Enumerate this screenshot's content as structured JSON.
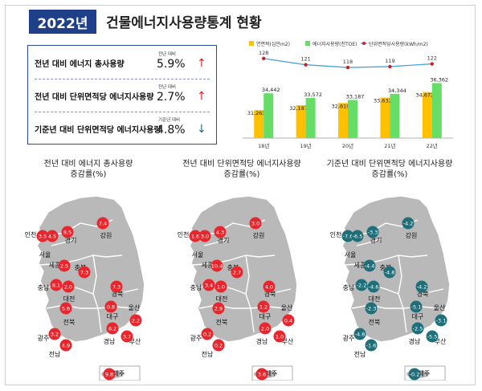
{
  "header": {
    "year": "2022년",
    "title": "건물에너지사용량통계 현황"
  },
  "stats": [
    {
      "label": "전년 대비 에너지 총사용량",
      "caption": "전년 대비",
      "value": "5.9%",
      "arrow": "↑",
      "direction": "up",
      "color": "#e02020"
    },
    {
      "label": "전년 대비 단위면적당 에너지사용량",
      "caption": "전년 대비",
      "value": "2.7%",
      "arrow": "↑",
      "direction": "up",
      "color": "#e02020"
    },
    {
      "label": "기준년 대비 단위면적당 에너지사용량",
      "caption": "기준년 대비",
      "value": "4.8%",
      "arrow": "↓",
      "direction": "down",
      "color": "#1e6f7a"
    }
  ],
  "chart_data": [
    {
      "type": "bar",
      "categories": [
        "18년",
        "19년",
        "20년",
        "21년",
        "22년"
      ],
      "series": [
        {
          "name": "연면적(십만m2)",
          "kind": "bar",
          "color": "#ffc000",
          "values": [
            31263,
            32187,
            32619,
            33632,
            34672
          ]
        },
        {
          "name": "에너지사용량(천TOE)",
          "kind": "bar",
          "color": "#66dd66",
          "values": [
            34442,
            33572,
            33187,
            34344,
            36362
          ]
        },
        {
          "name": "단위면적당사용량(kWh/m2)",
          "kind": "line",
          "color": "#4aa3df",
          "marker_color": "#cc2020",
          "values": [
            128,
            121,
            118,
            119,
            122
          ]
        }
      ],
      "legend_position": "top",
      "title": "",
      "xlabel": "",
      "ylabel": ""
    },
    {
      "type": "map",
      "title": "전년 대비 에너지 총사용량\n증감률(%)",
      "bubble_color": "#e8262d",
      "values": [
        {
          "region": "인천",
          "value": 3.5
        },
        {
          "region": "서울",
          "value": 4.5
        },
        {
          "region": "경기",
          "value": 8.5
        },
        {
          "region": "강원",
          "value": 7.4
        },
        {
          "region": "세종",
          "value": 2.5
        },
        {
          "region": "충북",
          "value": 7.3
        },
        {
          "region": "충남",
          "value": 8.1
        },
        {
          "region": "대전",
          "value": 2.0
        },
        {
          "region": "경북",
          "value": 7.3
        },
        {
          "region": "대구",
          "value": 0.8
        },
        {
          "region": "울산",
          "value": 2.2
        },
        {
          "region": "전북",
          "value": 5.6
        },
        {
          "region": "경남",
          "value": 6.2
        },
        {
          "region": "부산",
          "value": 3.7
        },
        {
          "region": "광주",
          "value": 3.2
        },
        {
          "region": "전남",
          "value": 4.9
        },
        {
          "region": "제주",
          "value": 9.8
        }
      ]
    },
    {
      "type": "map",
      "title": "전년 대비 단위면적당 에너지사용량\n증감률(%)",
      "bubble_color": "#e8262d",
      "values": [
        {
          "region": "인천",
          "value": 1.6
        },
        {
          "region": "서울",
          "value": 3.0
        },
        {
          "region": "경기",
          "value": 4.3
        },
        {
          "region": "강원",
          "value": 3.0
        },
        {
          "region": "세종",
          "value": 10.4
        },
        {
          "region": "충북",
          "value": 2.7
        },
        {
          "region": "충남",
          "value": 3.4
        },
        {
          "region": "대전",
          "value": 1.0
        },
        {
          "region": "경북",
          "value": 4.0
        },
        {
          "region": "대구",
          "value": 1.2
        },
        {
          "region": "울산",
          "value": 0.4
        },
        {
          "region": "전북",
          "value": 2.9
        },
        {
          "region": "경남",
          "value": 2.0
        },
        {
          "region": "부산",
          "value": 1.0
        },
        {
          "region": "광주",
          "value": 0.2
        },
        {
          "region": "전남",
          "value": 0.2
        },
        {
          "region": "제주",
          "value": 3.6
        }
      ]
    },
    {
      "type": "map",
      "title": "기준년 대비 단위면적당 에너지사용량\n증감률(%)",
      "bubble_color": "#1e6f7a",
      "values": [
        {
          "region": "인천",
          "value": -7.6
        },
        {
          "region": "서울",
          "value": -6.5
        },
        {
          "region": "경기",
          "value": -3.3
        },
        {
          "region": "강원",
          "value": -4.2
        },
        {
          "region": "세종",
          "value": -4.4
        },
        {
          "region": "충북",
          "value": -4.8
        },
        {
          "region": "충남",
          "value": -2.2
        },
        {
          "region": "대전",
          "value": -4.6
        },
        {
          "region": "경북",
          "value": -4.2
        },
        {
          "region": "대구",
          "value": -5.1
        },
        {
          "region": "울산",
          "value": -3.1
        },
        {
          "region": "전북",
          "value": -2.3
        },
        {
          "region": "경남",
          "value": -2.5
        },
        {
          "region": "부산",
          "value": -5.5
        },
        {
          "region": "광주",
          "value": -4.8
        },
        {
          "region": "전남",
          "value": -1.6
        },
        {
          "region": "제주",
          "value": -0.2
        }
      ]
    }
  ]
}
